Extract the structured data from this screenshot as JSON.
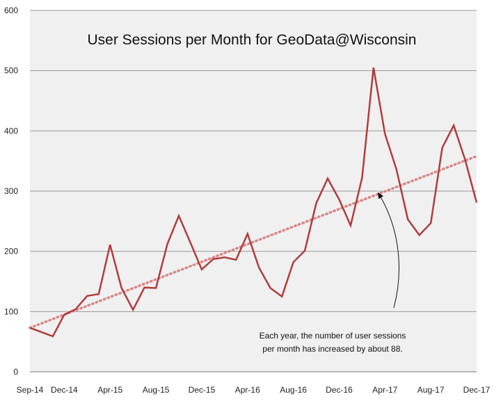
{
  "chart_data": {
    "type": "line",
    "title": "User Sessions per Month for GeoData@Wisconsin",
    "xlabel": "",
    "ylabel": "",
    "ylim": [
      0,
      600
    ],
    "yticks": [
      "0",
      "100",
      "200",
      "300",
      "400",
      "500",
      "600"
    ],
    "xticks": [
      "Sep-14",
      "Dec-14",
      "Apr-15",
      "Aug-15",
      "Dec-15",
      "Apr-16",
      "Aug-16",
      "Dec-16",
      "Apr-17",
      "Aug-17",
      "Dec-17"
    ],
    "grid": true,
    "series": [
      {
        "x": [
          "Sep-14",
          "Oct-14",
          "Nov-14",
          "Dec-14",
          "Jan-15",
          "Feb-15",
          "Mar-15",
          "Apr-15",
          "May-15",
          "Jun-15",
          "Jul-15",
          "Aug-15",
          "Sep-15",
          "Oct-15",
          "Nov-15",
          "Dec-15",
          "Jan-16",
          "Feb-16",
          "Mar-16",
          "Apr-16",
          "May-16",
          "Jun-16",
          "Jul-16",
          "Aug-16",
          "Sep-16",
          "Oct-16",
          "Nov-16",
          "Dec-16",
          "Jan-17",
          "Feb-17",
          "Mar-17",
          "Apr-17",
          "May-17",
          "Jun-17",
          "Jul-17",
          "Aug-17",
          "Sep-17",
          "Oct-17",
          "Nov-17",
          "Dec-17"
        ],
        "values": [
          73,
          66,
          59,
          95,
          104,
          126,
          129,
          211,
          139,
          103,
          140,
          139,
          212,
          259,
          215,
          170,
          187,
          190,
          186,
          229,
          173,
          139,
          125,
          182,
          201,
          280,
          321,
          286,
          243,
          322,
          505,
          395,
          336,
          253,
          227,
          247,
          372,
          409,
          352,
          281
        ],
        "color": "#b03c3c"
      }
    ],
    "trendline": {
      "start": 73,
      "end": 358,
      "color": "#d98585"
    },
    "annotation": {
      "lines": [
        "Each year, the number of user sessions",
        "per month has increased by about 88."
      ]
    },
    "colors": {
      "background": "#f0f0f0",
      "grid": "#999999"
    }
  }
}
